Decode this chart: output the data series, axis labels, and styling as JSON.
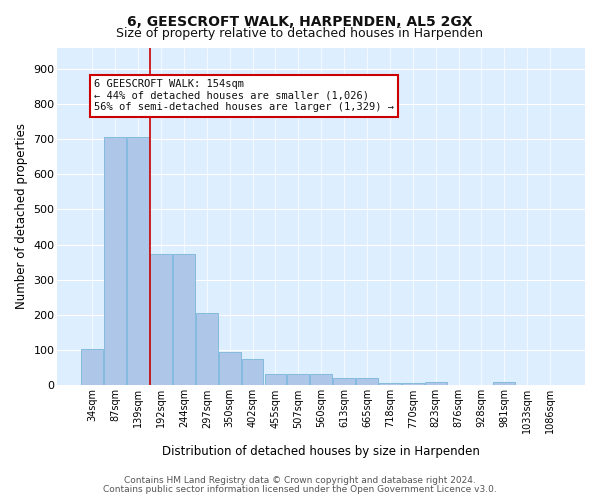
{
  "title": "6, GEESCROFT WALK, HARPENDEN, AL5 2GX",
  "subtitle": "Size of property relative to detached houses in Harpenden",
  "xlabel": "Distribution of detached houses by size in Harpenden",
  "ylabel": "Number of detached properties",
  "bar_color": "#aec6e8",
  "bar_edge_color": "#6aaed6",
  "background_color": "#ddeeff",
  "grid_color": "#ffffff",
  "categories": [
    "34sqm",
    "87sqm",
    "139sqm",
    "192sqm",
    "244sqm",
    "297sqm",
    "350sqm",
    "402sqm",
    "455sqm",
    "507sqm",
    "560sqm",
    "613sqm",
    "665sqm",
    "718sqm",
    "770sqm",
    "823sqm",
    "876sqm",
    "928sqm",
    "981sqm",
    "1033sqm",
    "1086sqm"
  ],
  "values": [
    103,
    707,
    707,
    372,
    372,
    207,
    96,
    75,
    32,
    32,
    32,
    22,
    22,
    8,
    8,
    10,
    0,
    0,
    10,
    0,
    0
  ],
  "ylim": [
    0,
    960
  ],
  "yticks": [
    0,
    100,
    200,
    300,
    400,
    500,
    600,
    700,
    800,
    900
  ],
  "property_line_x": 2.5,
  "property_label": "6 GEESCROFT WALK: 154sqm",
  "annotation_line1": "← 44% of detached houses are smaller (1,026)",
  "annotation_line2": "56% of semi-detached houses are larger (1,329) →",
  "annotation_box_color": "#ffffff",
  "annotation_box_edge": "#cc0000",
  "property_line_color": "#cc0000",
  "footnote1": "Contains HM Land Registry data © Crown copyright and database right 2024.",
  "footnote2": "Contains public sector information licensed under the Open Government Licence v3.0."
}
